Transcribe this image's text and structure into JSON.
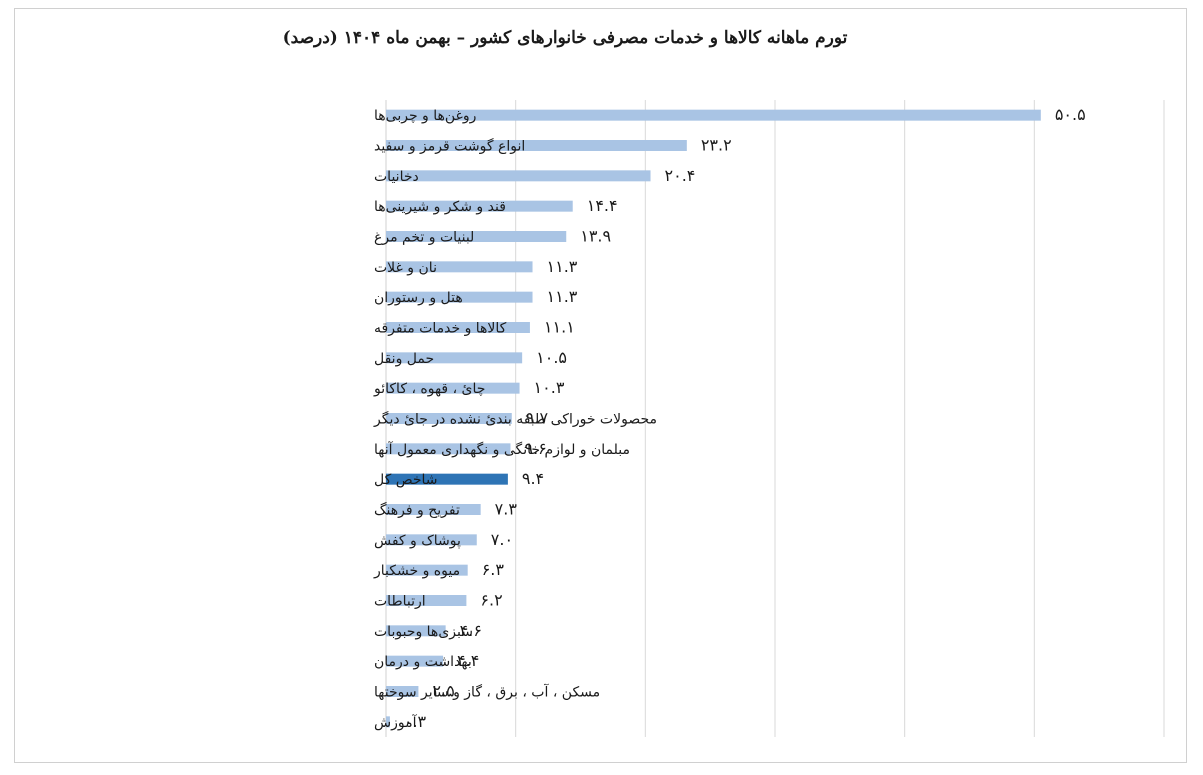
{
  "chart_data": {
    "type": "bar",
    "orientation": "horizontal",
    "title": "تورم ماهانه کالاها و خدمات مصرفی خانوارهای کشور – بهمن ماه ۱۴۰۴ (درصد)",
    "categories": [
      "روغن‌ها و چربی‌ها",
      "انواع گوشت قرمز و سفید",
      "دخانیات",
      "قند و شکر و شیرینی‌ها",
      "لبنیات و تخم مرغ",
      "نان و غلات",
      "هتل و رستوران",
      "کالاها و خدمات متفرقه",
      "حمل ونقل",
      "چائ ، قهوه ، کاکائو",
      "محصولات خوراکی طبقه بندئ نشده در جائ دیگر",
      "مبلمان و لوازم خانگی و نگهداری معمول آنها",
      "شاخص کل",
      "تفریح و فرهنگ",
      "پوشاک و کفش",
      "میوه و خشکبار",
      "ارتباطات",
      "سبزی‌ها وحبوبات",
      "بهداشت و درمان",
      "مسکن ، آب ، برق ، گاز و سایر سوختها",
      "آموزش"
    ],
    "values": [
      50.5,
      23.2,
      20.4,
      14.4,
      13.9,
      11.3,
      11.3,
      11.1,
      10.5,
      10.3,
      9.7,
      9.6,
      9.4,
      7.3,
      7.0,
      6.3,
      6.2,
      4.6,
      4.4,
      2.5,
      0.3
    ],
    "value_labels": [
      "۵۰.۵",
      "۲۳.۲",
      "۲۰.۴",
      "۱۴.۴",
      "۱۳.۹",
      "۱۱.۳",
      "۱۱.۳",
      "۱۱.۱",
      "۱۰.۵",
      "۱۰.۳",
      "۹.۷",
      "۹.۶",
      "۹.۴",
      "۷.۳",
      "۷.۰",
      "۶.۳",
      "۶.۲",
      "۴.۶",
      "۴.۴",
      "۲.۵",
      "۰.۳"
    ],
    "highlight_index": 12,
    "xlim": [
      0,
      60
    ],
    "grid": true,
    "colors": {
      "bar": "#a9c4e4",
      "highlight": "#2e74b5",
      "grid": "#d9d9d9"
    }
  }
}
